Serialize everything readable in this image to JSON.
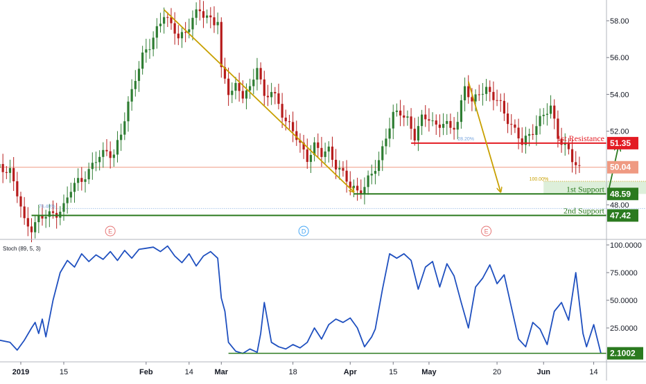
{
  "colors": {
    "up": "#2e7d32",
    "down": "#b71c1c",
    "arrow": "#c8a000",
    "resistance": "#e31b23",
    "support": "#2b7a1f",
    "current": "#ef9a82",
    "stoch": "#1e4fbf",
    "earnings": "#e57373",
    "dividend": "#42a5f5",
    "fib": "#7aa7e0",
    "axis_text": "#131722"
  },
  "chart_data": [
    {
      "type": "candlestick",
      "x_tick_labels": [
        "2019",
        "15",
        "Feb",
        "14",
        "Mar",
        "18",
        "Apr",
        "15",
        "May",
        "20",
        "Jun",
        "14"
      ],
      "y_ticks": [
        "58.00",
        "56.00",
        "54.00",
        "52.00",
        "48.00"
      ],
      "ylim": [
        46.7,
        59.4
      ],
      "price_path": [
        {
          "day": -6,
          "price": 50.0
        },
        {
          "day": -3,
          "price": 49.9
        },
        {
          "day": -1,
          "price": 48.6
        },
        {
          "day": 1,
          "price": 47.0
        },
        {
          "day": 3,
          "price": 46.8
        },
        {
          "day": 5,
          "price": 47.3
        },
        {
          "day": 8,
          "price": 47.4
        },
        {
          "day": 10,
          "price": 47.6
        },
        {
          "day": 12,
          "price": 47.9
        },
        {
          "day": 14,
          "price": 48.8
        },
        {
          "day": 16,
          "price": 49.3
        },
        {
          "day": 19,
          "price": 49.8
        },
        {
          "day": 21,
          "price": 50.4
        },
        {
          "day": 24,
          "price": 51.0
        },
        {
          "day": 26,
          "price": 50.7
        },
        {
          "day": 28,
          "price": 51.8
        },
        {
          "day": 30,
          "price": 53.5
        },
        {
          "day": 32,
          "price": 55.0
        },
        {
          "day": 34,
          "price": 56.0
        },
        {
          "day": 36,
          "price": 56.6
        },
        {
          "day": 38,
          "price": 57.6
        },
        {
          "day": 40,
          "price": 58.4
        },
        {
          "day": 42,
          "price": 57.6
        },
        {
          "day": 44,
          "price": 57.2
        },
        {
          "day": 46,
          "price": 57.4
        },
        {
          "day": 48,
          "price": 58.1
        },
        {
          "day": 50,
          "price": 58.5
        },
        {
          "day": 52,
          "price": 58.3
        },
        {
          "day": 54,
          "price": 57.9
        },
        {
          "day": 55,
          "price": 58.0
        },
        {
          "day": 56,
          "price": 55.2
        },
        {
          "day": 58,
          "price": 54.2
        },
        {
          "day": 60,
          "price": 54.5
        },
        {
          "day": 62,
          "price": 53.9
        },
        {
          "day": 64,
          "price": 54.2
        },
        {
          "day": 66,
          "price": 55.7
        },
        {
          "day": 68,
          "price": 53.8
        },
        {
          "day": 70,
          "price": 54.1
        },
        {
          "day": 72,
          "price": 53.5
        },
        {
          "day": 74,
          "price": 52.6
        },
        {
          "day": 76,
          "price": 52.0
        },
        {
          "day": 78,
          "price": 51.2
        },
        {
          "day": 80,
          "price": 50.6
        },
        {
          "day": 82,
          "price": 51.2
        },
        {
          "day": 84,
          "price": 50.7
        },
        {
          "day": 86,
          "price": 51.0
        },
        {
          "day": 88,
          "price": 50.2
        },
        {
          "day": 90,
          "price": 49.6
        },
        {
          "day": 92,
          "price": 49.0
        },
        {
          "day": 94,
          "price": 48.8
        },
        {
          "day": 96,
          "price": 49.0
        },
        {
          "day": 98,
          "price": 49.6
        },
        {
          "day": 100,
          "price": 50.4
        },
        {
          "day": 102,
          "price": 51.8
        },
        {
          "day": 104,
          "price": 52.8
        },
        {
          "day": 106,
          "price": 53.0
        },
        {
          "day": 108,
          "price": 52.7
        },
        {
          "day": 110,
          "price": 51.7
        },
        {
          "day": 112,
          "price": 52.6
        },
        {
          "day": 114,
          "price": 52.8
        },
        {
          "day": 116,
          "price": 52.3
        },
        {
          "day": 118,
          "price": 52.4
        },
        {
          "day": 120,
          "price": 52.1
        },
        {
          "day": 122,
          "price": 52.6
        },
        {
          "day": 124,
          "price": 54.5
        },
        {
          "day": 126,
          "price": 53.4
        },
        {
          "day": 128,
          "price": 54.2
        },
        {
          "day": 130,
          "price": 54.3
        },
        {
          "day": 132,
          "price": 53.8
        },
        {
          "day": 134,
          "price": 53.4
        },
        {
          "day": 136,
          "price": 52.7
        },
        {
          "day": 138,
          "price": 52.0
        },
        {
          "day": 140,
          "price": 51.3
        },
        {
          "day": 142,
          "price": 51.8
        },
        {
          "day": 144,
          "price": 52.4
        },
        {
          "day": 146,
          "price": 52.8
        },
        {
          "day": 148,
          "price": 53.3
        },
        {
          "day": 150,
          "price": 51.8
        },
        {
          "day": 152,
          "price": 51.2
        },
        {
          "day": 154,
          "price": 50.4
        },
        {
          "day": 156,
          "price": 50.0
        }
      ],
      "levels": [
        {
          "label": "1st Resistance",
          "value": 51.35,
          "value_label": "51.35",
          "start_day": 109,
          "color_key": "resistance"
        },
        {
          "label": "1st Support",
          "value": 48.59,
          "value_label": "48.59",
          "start_day": 93,
          "color_key": "support"
        },
        {
          "label": "2nd Support",
          "value": 47.42,
          "value_label": "47.42",
          "start_day": 3,
          "color_key": "support"
        }
      ],
      "last_price": {
        "value": 50.04,
        "label": "50.04"
      },
      "fib_labels": [
        {
          "text": "28.20%",
          "day": 122,
          "price": 51.45
        },
        {
          "text": "100.00%",
          "day": 142,
          "price": 49.28
        },
        {
          "text": "76.40%",
          "day": 5,
          "price": 47.8
        }
      ],
      "fib_lines": [
        {
          "price": 47.8,
          "start_day": 8,
          "end_day": 204
        },
        {
          "price": 49.28,
          "start_day": 146,
          "end_day": 204
        }
      ],
      "target_zone": {
        "from_day": 146,
        "to_day": 204,
        "low": 48.59,
        "high": 49.28
      },
      "arrows": [
        {
          "from_day": 40,
          "from_price": 58.6,
          "to_day": 93,
          "to_price": 48.7,
          "color_key": "arrow"
        },
        {
          "from_day": 125,
          "from_price": 54.7,
          "to_day": 134,
          "to_price": 48.7,
          "color_key": "arrow"
        },
        {
          "from_day": 164,
          "from_price": 48.65,
          "to_day": 167,
          "to_price": 51.25,
          "color_key": "support"
        }
      ],
      "event_markers": [
        {
          "letter": "E",
          "day": 25,
          "type": "earnings"
        },
        {
          "letter": "D",
          "day": 79,
          "type": "dividend"
        },
        {
          "letter": "E",
          "day": 130,
          "type": "earnings"
        }
      ]
    },
    {
      "type": "line",
      "title": "Stoch (89, 5, 3)",
      "y_ticks": [
        "100.0000",
        "75.0000",
        "50.0000",
        "25.0000"
      ],
      "ylim": [
        0,
        100
      ],
      "last_value": {
        "value": 2.1002,
        "label": "2.1002"
      },
      "series": [
        {
          "values": [
            {
              "day": -6,
              "value": 14
            },
            {
              "day": -3,
              "value": 12
            },
            {
              "day": -1,
              "value": 5
            },
            {
              "day": 1,
              "value": 14
            },
            {
              "day": 3,
              "value": 25
            },
            {
              "day": 4,
              "value": 30
            },
            {
              "day": 5,
              "value": 20
            },
            {
              "day": 6,
              "value": 33
            },
            {
              "day": 7,
              "value": 17
            },
            {
              "day": 9,
              "value": 50
            },
            {
              "day": 11,
              "value": 75
            },
            {
              "day": 13,
              "value": 86
            },
            {
              "day": 15,
              "value": 80
            },
            {
              "day": 17,
              "value": 92
            },
            {
              "day": 19,
              "value": 85
            },
            {
              "day": 21,
              "value": 91
            },
            {
              "day": 23,
              "value": 87
            },
            {
              "day": 25,
              "value": 94
            },
            {
              "day": 27,
              "value": 86
            },
            {
              "day": 29,
              "value": 95
            },
            {
              "day": 31,
              "value": 88
            },
            {
              "day": 33,
              "value": 96
            },
            {
              "day": 35,
              "value": 97
            },
            {
              "day": 37,
              "value": 98
            },
            {
              "day": 39,
              "value": 94
            },
            {
              "day": 41,
              "value": 99
            },
            {
              "day": 43,
              "value": 90
            },
            {
              "day": 45,
              "value": 84
            },
            {
              "day": 47,
              "value": 92
            },
            {
              "day": 49,
              "value": 81
            },
            {
              "day": 51,
              "value": 90
            },
            {
              "day": 53,
              "value": 94
            },
            {
              "day": 55,
              "value": 88
            },
            {
              "day": 56,
              "value": 52
            },
            {
              "day": 57,
              "value": 40
            },
            {
              "day": 58,
              "value": 12
            },
            {
              "day": 60,
              "value": 4
            },
            {
              "day": 62,
              "value": 2
            },
            {
              "day": 64,
              "value": 6
            },
            {
              "day": 66,
              "value": 3
            },
            {
              "day": 67,
              "value": 20
            },
            {
              "day": 68,
              "value": 48
            },
            {
              "day": 69,
              "value": 30
            },
            {
              "day": 70,
              "value": 12
            },
            {
              "day": 72,
              "value": 8
            },
            {
              "day": 74,
              "value": 6
            },
            {
              "day": 76,
              "value": 10
            },
            {
              "day": 78,
              "value": 7
            },
            {
              "day": 80,
              "value": 12
            },
            {
              "day": 82,
              "value": 25
            },
            {
              "day": 84,
              "value": 15
            },
            {
              "day": 86,
              "value": 28
            },
            {
              "day": 88,
              "value": 33
            },
            {
              "day": 90,
              "value": 30
            },
            {
              "day": 92,
              "value": 34
            },
            {
              "day": 94,
              "value": 25
            },
            {
              "day": 96,
              "value": 8
            },
            {
              "day": 98,
              "value": 17
            },
            {
              "day": 99,
              "value": 24
            },
            {
              "day": 101,
              "value": 60
            },
            {
              "day": 103,
              "value": 92
            },
            {
              "day": 105,
              "value": 88
            },
            {
              "day": 107,
              "value": 92
            },
            {
              "day": 109,
              "value": 86
            },
            {
              "day": 111,
              "value": 60
            },
            {
              "day": 113,
              "value": 80
            },
            {
              "day": 115,
              "value": 85
            },
            {
              "day": 117,
              "value": 62
            },
            {
              "day": 119,
              "value": 83
            },
            {
              "day": 121,
              "value": 72
            },
            {
              "day": 123,
              "value": 48
            },
            {
              "day": 125,
              "value": 25
            },
            {
              "day": 127,
              "value": 62
            },
            {
              "day": 129,
              "value": 70
            },
            {
              "day": 131,
              "value": 82
            },
            {
              "day": 133,
              "value": 65
            },
            {
              "day": 135,
              "value": 73
            },
            {
              "day": 137,
              "value": 44
            },
            {
              "day": 139,
              "value": 15
            },
            {
              "day": 141,
              "value": 8
            },
            {
              "day": 143,
              "value": 30
            },
            {
              "day": 145,
              "value": 24
            },
            {
              "day": 147,
              "value": 10
            },
            {
              "day": 149,
              "value": 40
            },
            {
              "day": 151,
              "value": 48
            },
            {
              "day": 153,
              "value": 32
            },
            {
              "day": 155,
              "value": 75
            },
            {
              "day": 157,
              "value": 20
            },
            {
              "day": 158,
              "value": 8
            },
            {
              "day": 160,
              "value": 28
            },
            {
              "day": 162,
              "value": 2.1
            }
          ]
        }
      ],
      "levels": [
        {
          "value": 2.1002,
          "start_day": 58,
          "color_key": "support"
        }
      ]
    }
  ]
}
